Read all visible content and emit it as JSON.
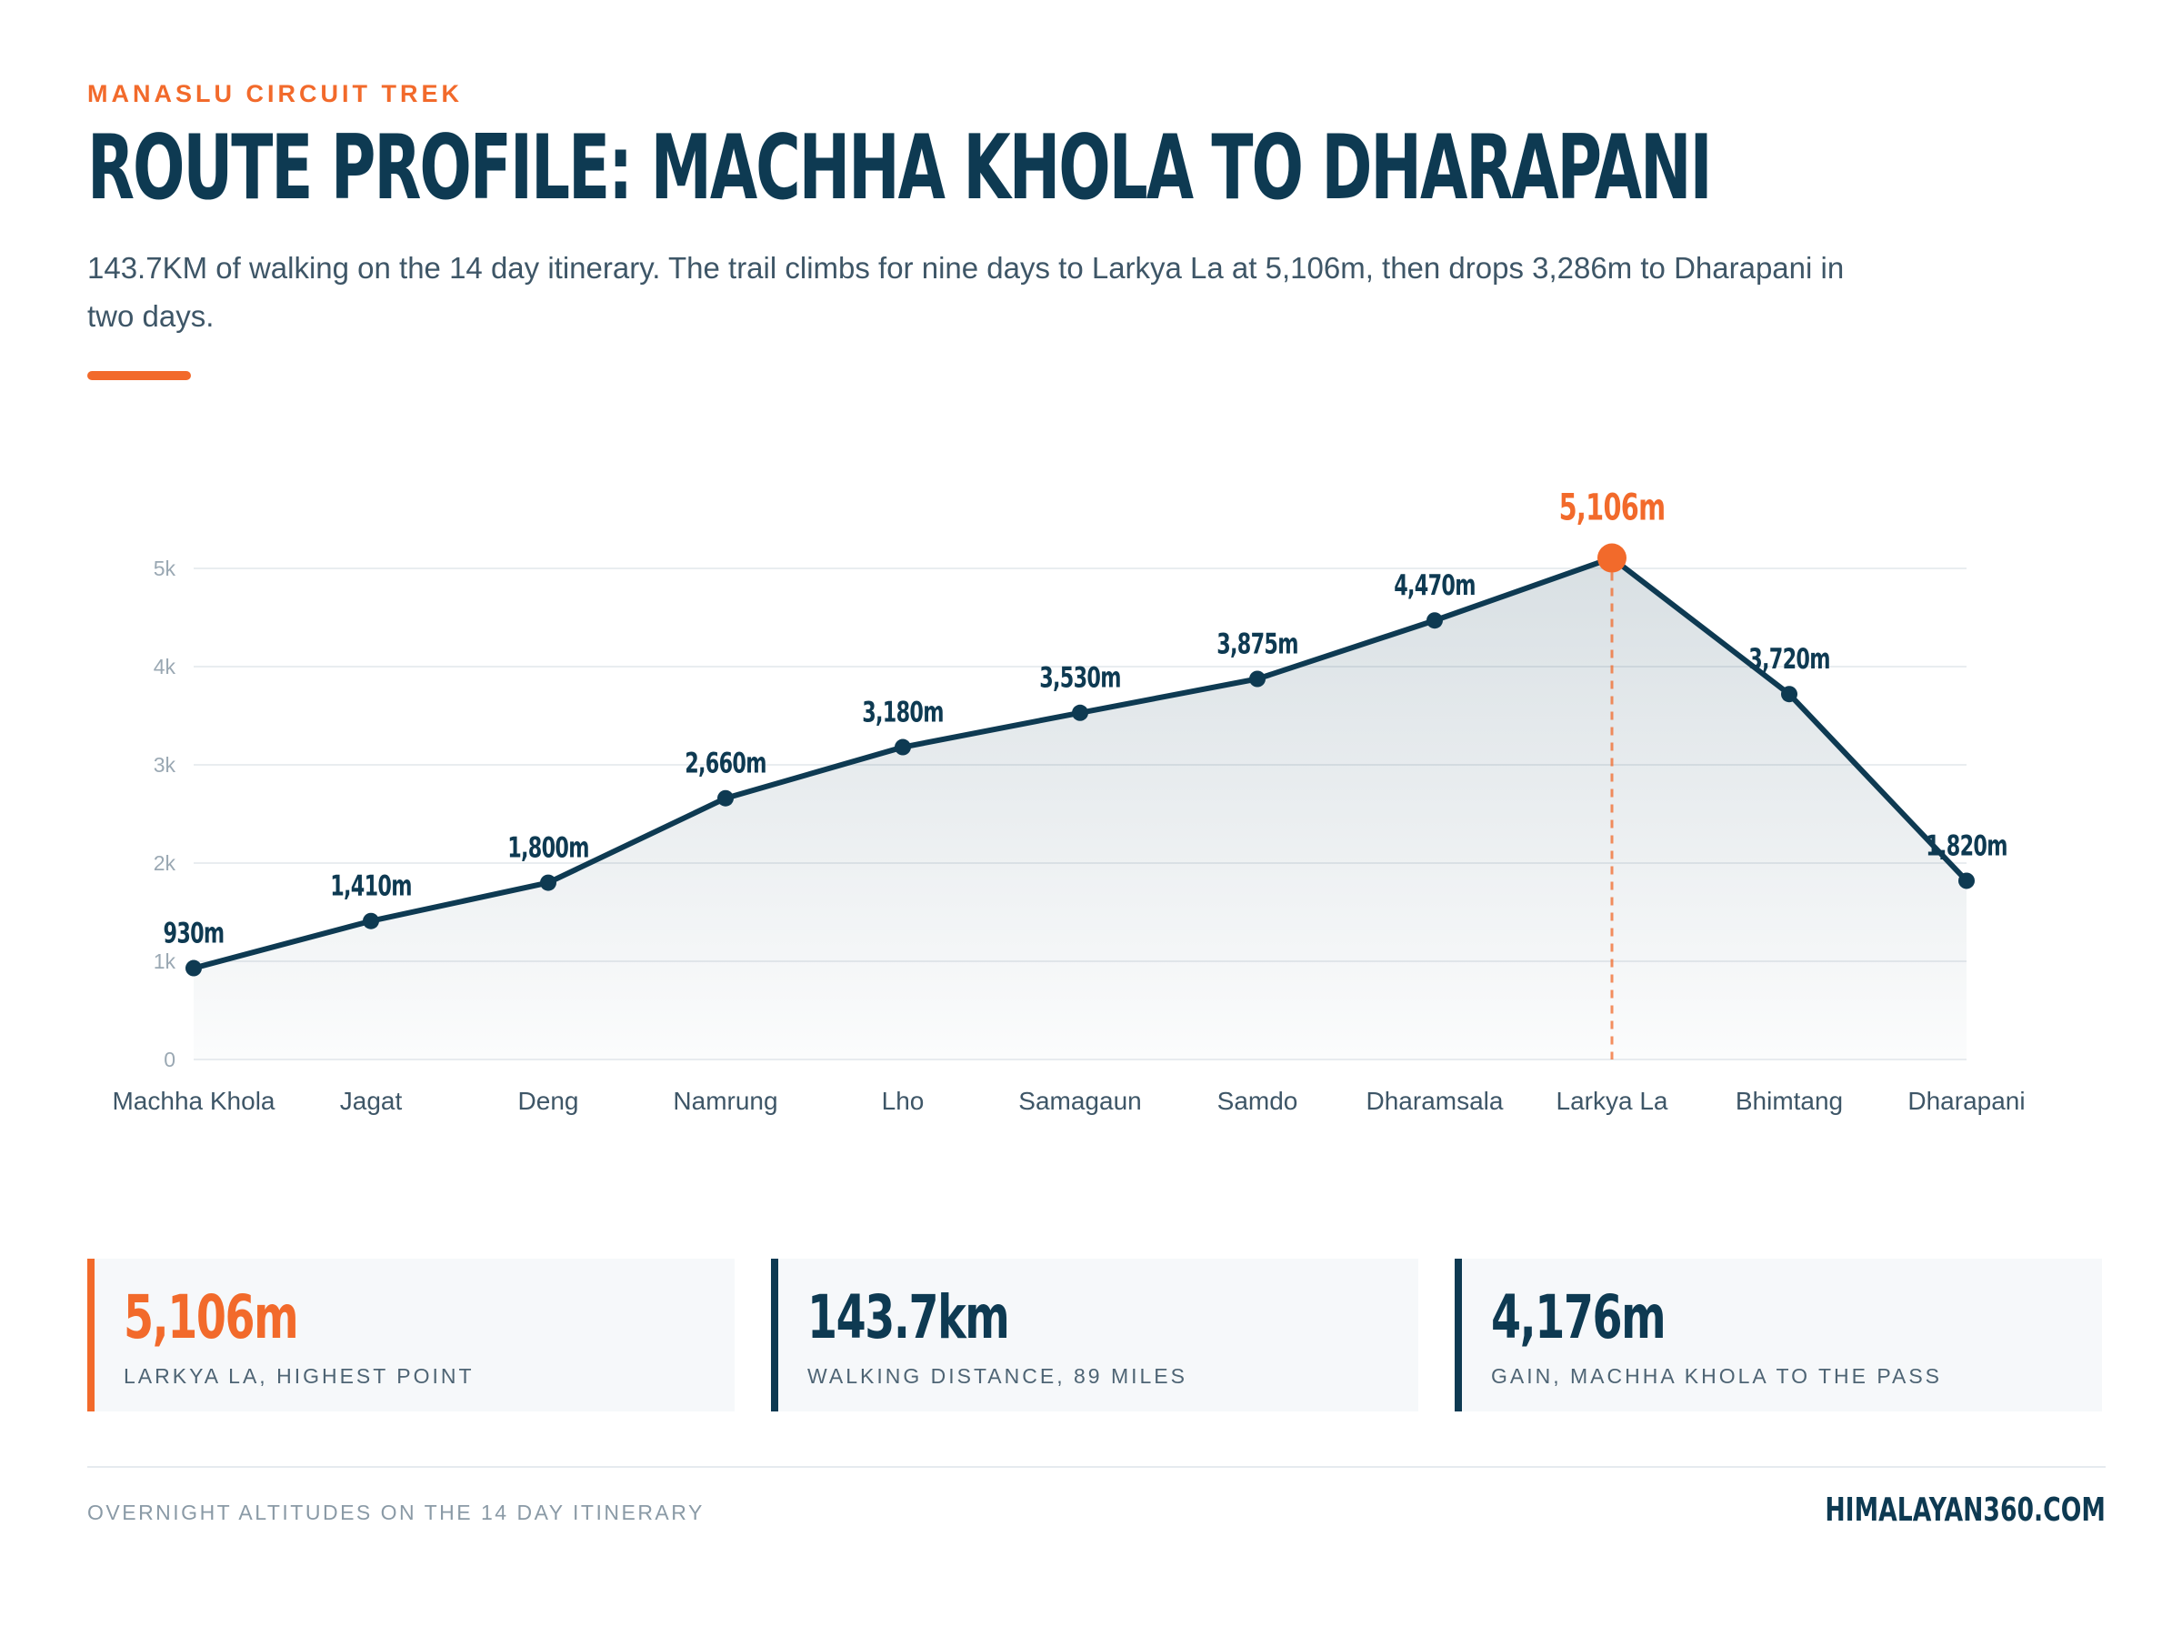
{
  "header": {
    "eyebrow": "MANASLU CIRCUIT TREK",
    "title": "ROUTE PROFILE: MACHHA KHOLA TO DHARAPANI",
    "subtitle": "143.7KM of walking on the 14 day itinerary. The trail climbs for nine days to Larkya La at 5,106m, then drops 3,286m to Dharapani in two days."
  },
  "colors": {
    "accent": "#f26a2b",
    "navy": "#0e3a52",
    "grid": "#e9edf0",
    "tick": "#9aa8b3"
  },
  "chart_data": {
    "type": "area",
    "title": "",
    "xlabel": "",
    "ylabel": "",
    "ylim": [
      0,
      5000
    ],
    "yticks": [
      0,
      1000,
      2000,
      3000,
      4000,
      5000
    ],
    "ytick_labels": [
      "0",
      "1k",
      "2k",
      "3k",
      "4k",
      "5k"
    ],
    "grid": true,
    "categories": [
      "Machha Khola",
      "Jagat",
      "Deng",
      "Namrung",
      "Lho",
      "Samagaun",
      "Samdo",
      "Dharamsala",
      "Larkya La",
      "Bhimtang",
      "Dharapani"
    ],
    "series": [
      {
        "values": [
          930,
          1410,
          1800,
          2660,
          3180,
          3530,
          3875,
          4470,
          5106,
          3720,
          1820
        ],
        "labels": [
          "930m",
          "1,410m",
          "1,800m",
          "2,660m",
          "3,180m",
          "3,530m",
          "3,875m",
          "4,470m",
          "5,106m",
          "3,720m",
          "1,820m"
        ]
      }
    ],
    "highlight_index": 8
  },
  "stats": [
    {
      "value": "5,106m",
      "label": "LARKYA LA, HIGHEST POINT"
    },
    {
      "value": "143.7km",
      "label": "WALKING DISTANCE, 89 MILES"
    },
    {
      "value": "4,176m",
      "label": "GAIN, MACHHA KHOLA TO THE PASS"
    }
  ],
  "footer": {
    "note": "OVERNIGHT ALTITUDES ON THE 14 DAY ITINERARY",
    "brand": "HIMALAYAN360.COM"
  }
}
